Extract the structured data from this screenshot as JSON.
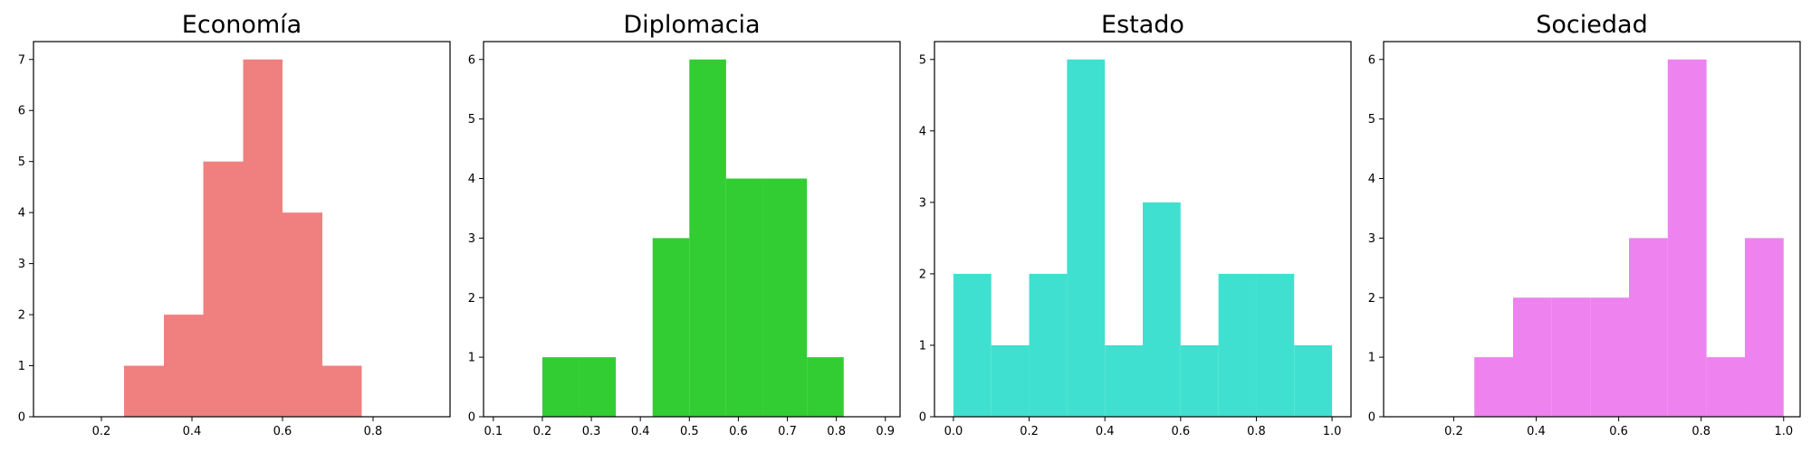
{
  "chart_data": [
    {
      "type": "bar",
      "title": "Economía",
      "color": "#F08080",
      "xlim": [
        0.05,
        0.97
      ],
      "ylim": [
        0,
        7.35
      ],
      "xticks": [
        0.2,
        0.4,
        0.6,
        0.8
      ],
      "xtick_labels": [
        "0.2",
        "0.4",
        "0.6",
        "0.8"
      ],
      "yticks": [
        0,
        1,
        2,
        3,
        4,
        5,
        6,
        7
      ],
      "ytick_labels": [
        "0",
        "1",
        "2",
        "3",
        "4",
        "5",
        "6",
        "7"
      ],
      "bins": [
        {
          "x0": 0.25,
          "x1": 0.338,
          "count": 1
        },
        {
          "x0": 0.338,
          "x1": 0.425,
          "count": 2
        },
        {
          "x0": 0.425,
          "x1": 0.513,
          "count": 5
        },
        {
          "x0": 0.513,
          "x1": 0.6,
          "count": 7
        },
        {
          "x0": 0.6,
          "x1": 0.688,
          "count": 4
        },
        {
          "x0": 0.688,
          "x1": 0.775,
          "count": 1
        }
      ]
    },
    {
      "type": "bar",
      "title": "Diplomacia",
      "color": "#32CD32",
      "xlim": [
        0.08,
        0.93
      ],
      "ylim": [
        0,
        6.3
      ],
      "xticks": [
        0.1,
        0.2,
        0.3,
        0.4,
        0.5,
        0.6,
        0.7,
        0.8,
        0.9
      ],
      "xtick_labels": [
        "0.1",
        "0.2",
        "0.3",
        "0.4",
        "0.5",
        "0.6",
        "0.7",
        "0.8",
        "0.9"
      ],
      "yticks": [
        0,
        1,
        2,
        3,
        4,
        5,
        6
      ],
      "ytick_labels": [
        "0",
        "1",
        "2",
        "3",
        "4",
        "5",
        "6"
      ],
      "bins": [
        {
          "x0": 0.2,
          "x1": 0.275,
          "count": 1
        },
        {
          "x0": 0.275,
          "x1": 0.35,
          "count": 1
        },
        {
          "x0": 0.35,
          "x1": 0.425,
          "count": 0
        },
        {
          "x0": 0.425,
          "x1": 0.5,
          "count": 3
        },
        {
          "x0": 0.5,
          "x1": 0.575,
          "count": 6
        },
        {
          "x0": 0.575,
          "x1": 0.65,
          "count": 4
        },
        {
          "x0": 0.65,
          "x1": 0.74,
          "count": 4
        },
        {
          "x0": 0.74,
          "x1": 0.815,
          "count": 1
        }
      ]
    },
    {
      "type": "bar",
      "title": "Estado",
      "color": "#40E0D0",
      "xlim": [
        -0.05,
        1.05
      ],
      "ylim": [
        0,
        5.25
      ],
      "xticks": [
        0.0,
        0.2,
        0.4,
        0.6,
        0.8,
        1.0
      ],
      "xtick_labels": [
        "0.0",
        "0.2",
        "0.4",
        "0.6",
        "0.8",
        "1.0"
      ],
      "yticks": [
        0,
        1,
        2,
        3,
        4,
        5
      ],
      "ytick_labels": [
        "0",
        "1",
        "2",
        "3",
        "4",
        "5"
      ],
      "bins": [
        {
          "x0": 0.0,
          "x1": 0.1,
          "count": 2
        },
        {
          "x0": 0.1,
          "x1": 0.2,
          "count": 1
        },
        {
          "x0": 0.2,
          "x1": 0.3,
          "count": 2
        },
        {
          "x0": 0.3,
          "x1": 0.4,
          "count": 5
        },
        {
          "x0": 0.4,
          "x1": 0.5,
          "count": 1
        },
        {
          "x0": 0.5,
          "x1": 0.6,
          "count": 3
        },
        {
          "x0": 0.6,
          "x1": 0.7,
          "count": 1
        },
        {
          "x0": 0.7,
          "x1": 0.8,
          "count": 2
        },
        {
          "x0": 0.8,
          "x1": 0.9,
          "count": 2
        },
        {
          "x0": 0.9,
          "x1": 1.0,
          "count": 1
        }
      ]
    },
    {
      "type": "bar",
      "title": "Sociedad",
      "color": "#EE82EE",
      "xlim": [
        0.03,
        1.04
      ],
      "ylim": [
        0,
        6.3
      ],
      "xticks": [
        0.2,
        0.4,
        0.6,
        0.8,
        1.0
      ],
      "xtick_labels": [
        "0.2",
        "0.4",
        "0.6",
        "0.8",
        "1.0"
      ],
      "yticks": [
        0,
        1,
        2,
        3,
        4,
        5,
        6
      ],
      "ytick_labels": [
        "0",
        "1",
        "2",
        "3",
        "4",
        "5",
        "6"
      ],
      "bins": [
        {
          "x0": 0.25,
          "x1": 0.344,
          "count": 1
        },
        {
          "x0": 0.344,
          "x1": 0.438,
          "count": 2
        },
        {
          "x0": 0.438,
          "x1": 0.531,
          "count": 2
        },
        {
          "x0": 0.531,
          "x1": 0.625,
          "count": 2
        },
        {
          "x0": 0.625,
          "x1": 0.719,
          "count": 3
        },
        {
          "x0": 0.719,
          "x1": 0.813,
          "count": 6
        },
        {
          "x0": 0.813,
          "x1": 0.906,
          "count": 1
        },
        {
          "x0": 0.906,
          "x1": 1.0,
          "count": 3
        }
      ]
    }
  ]
}
